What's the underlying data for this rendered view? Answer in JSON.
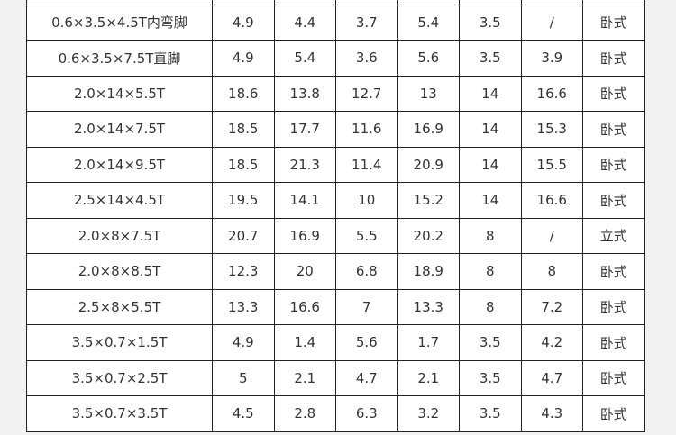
{
  "table": {
    "rows": [
      [
        "",
        "",
        "",
        "",
        "",
        "",
        "",
        ""
      ],
      [
        "0.6×3.5×4.5T内弯脚",
        "4.9",
        "4.4",
        "3.7",
        "5.4",
        "3.5",
        "/",
        "卧式"
      ],
      [
        "0.6×3.5×7.5T直脚",
        "4.9",
        "5.4",
        "3.6",
        "5.6",
        "3.5",
        "3.9",
        "卧式"
      ],
      [
        "2.0×14×5.5T",
        "18.6",
        "13.8",
        "12.7",
        "13",
        "14",
        "16.6",
        "卧式"
      ],
      [
        "2.0×14×7.5T",
        "18.5",
        "17.7",
        "11.6",
        "16.9",
        "14",
        "15.3",
        "卧式"
      ],
      [
        "2.0×14×9.5T",
        "18.5",
        "21.3",
        "11.4",
        "20.9",
        "14",
        "15.5",
        "卧式"
      ],
      [
        "2.5×14×4.5T",
        "19.5",
        "14.1",
        "10",
        "15.2",
        "14",
        "16.6",
        "卧式"
      ],
      [
        "2.0×8×7.5T",
        "20.7",
        "16.9",
        "5.5",
        "20.2",
        "8",
        "/",
        "立式"
      ],
      [
        "2.0×8×8.5T",
        "12.3",
        "20",
        "6.8",
        "18.9",
        "8",
        "8",
        "卧式"
      ],
      [
        "2.5×8×5.5T",
        "13.3",
        "16.6",
        "7",
        "13.3",
        "8",
        "7.2",
        "卧式"
      ],
      [
        "3.5×0.7×1.5T",
        "4.9",
        "1.4",
        "5.6",
        "1.7",
        "3.5",
        "4.2",
        "卧式"
      ],
      [
        "3.5×0.7×2.5T",
        "5",
        "2.1",
        "4.7",
        "2.1",
        "3.5",
        "4.7",
        "卧式"
      ],
      [
        "3.5×0.7×3.5T",
        "4.5",
        "2.8",
        "6.3",
        "3.2",
        "3.5",
        "4.3",
        "卧式"
      ]
    ]
  }
}
